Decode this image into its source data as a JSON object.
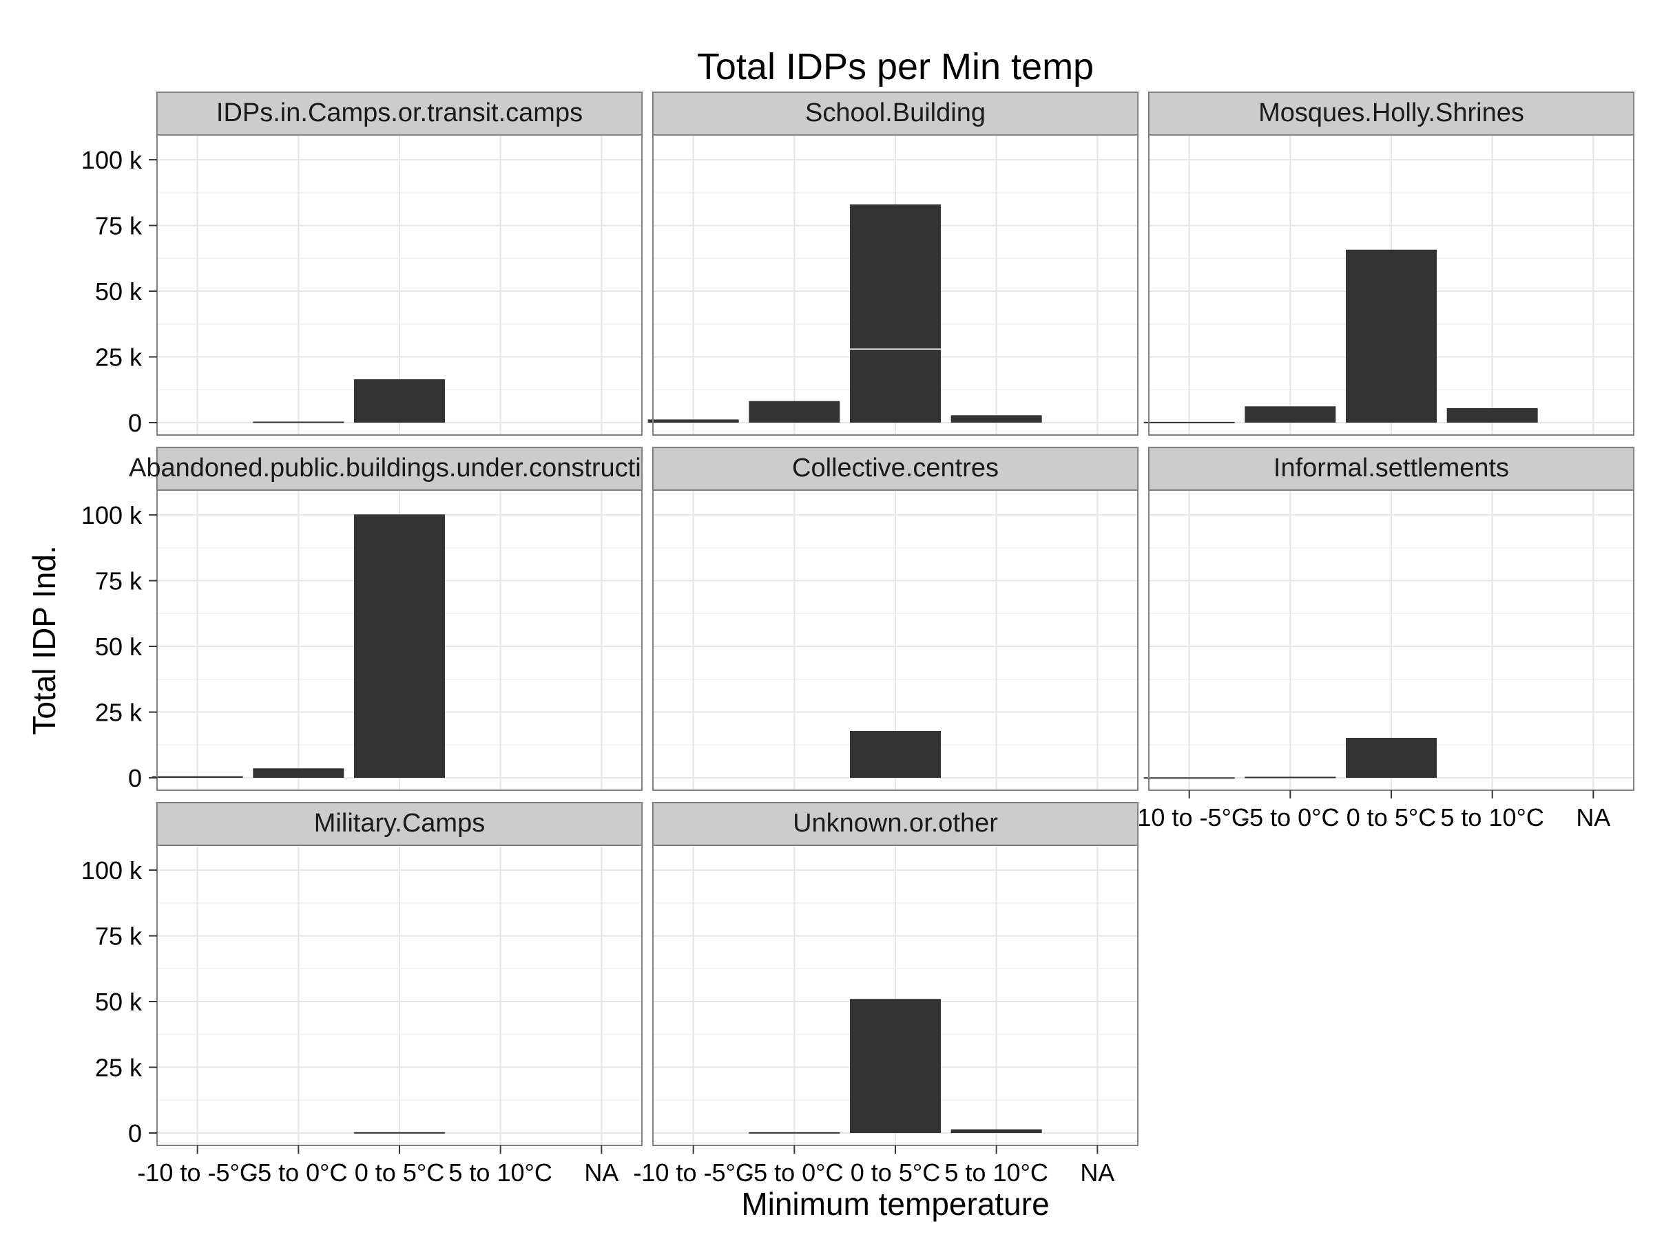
{
  "chart_data": {
    "type": "bar",
    "title": "Total IDPs per Min temp",
    "xlabel": "Minimum temperature",
    "ylabel": "Total IDP Ind.",
    "categories": [
      "-10 to -5°C",
      "-5 to 0°C",
      "0 to 5°C",
      "5 to 10°C",
      "NA"
    ],
    "ylim": [
      0,
      105000
    ],
    "yticks": [
      0,
      25000,
      50000,
      75000,
      100000
    ],
    "ytick_labels": [
      "0",
      "25 k",
      "50 k",
      "75 k",
      "100 k"
    ],
    "facet_columns": 3,
    "grid": true,
    "panels": [
      {
        "name": "IDPs.in.Camps.or.transit.camps",
        "values": [
          0,
          400,
          16500,
          0,
          0
        ]
      },
      {
        "name": "School.Building",
        "values": [
          1200,
          8200,
          83000,
          2800,
          0
        ],
        "stack_split": [
          2,
          28000
        ]
      },
      {
        "name": "Mosques.Holly.Shrines",
        "values": [
          300,
          6200,
          65800,
          5500,
          0
        ]
      },
      {
        "name": "Abandoned.public.buildings.under.construction",
        "values": [
          600,
          3600,
          100200,
          0,
          0
        ]
      },
      {
        "name": "Collective.centres",
        "values": [
          0,
          0,
          17800,
          0,
          0
        ]
      },
      {
        "name": "Informal.settlements",
        "values": [
          200,
          400,
          15200,
          0,
          0
        ]
      },
      {
        "name": "Military.Camps",
        "values": [
          0,
          0,
          300,
          0,
          0
        ]
      },
      {
        "name": "Unknown.or.other",
        "values": [
          0,
          300,
          51000,
          1400,
          0
        ]
      }
    ]
  }
}
